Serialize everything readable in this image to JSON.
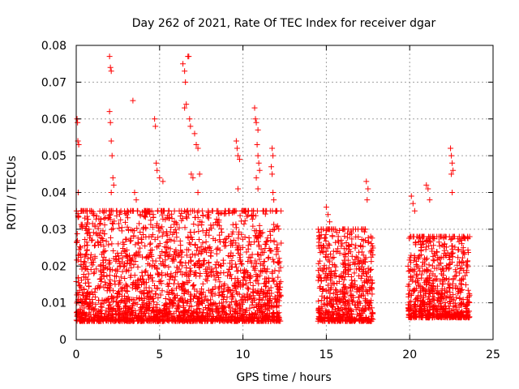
{
  "chart_data": {
    "type": "scatter",
    "title": "Day 262 of 2021, Rate Of TEC Index for receiver dgar",
    "xlabel": "GPS time / hours",
    "ylabel": "ROTI / TECUs",
    "xlim": [
      0,
      25
    ],
    "ylim": [
      0,
      0.08
    ],
    "x_ticks": [
      0,
      5,
      10,
      15,
      20,
      25
    ],
    "x_tick_labels": [
      "0",
      "5",
      "10",
      "15",
      "20",
      "25"
    ],
    "y_ticks": [
      0,
      0.01,
      0.02,
      0.03,
      0.04,
      0.05,
      0.06,
      0.07,
      0.08
    ],
    "y_tick_labels": [
      "0",
      "0.01",
      "0.02",
      "0.03",
      "0.04",
      "0.05",
      "0.06",
      "0.07",
      "0.08"
    ],
    "grid": true,
    "marker": "+",
    "marker_color": "#ff0000",
    "series": [
      {
        "points": [
          [
            0.05,
            0.06
          ],
          [
            0.08,
            0.059
          ],
          [
            0.1,
            0.054
          ],
          [
            0.15,
            0.053
          ],
          [
            0.12,
            0.04
          ],
          [
            2.0,
            0.077
          ],
          [
            2.05,
            0.074
          ],
          [
            2.1,
            0.073
          ],
          [
            2.0,
            0.062
          ],
          [
            2.05,
            0.059
          ],
          [
            2.1,
            0.054
          ],
          [
            2.15,
            0.05
          ],
          [
            2.2,
            0.044
          ],
          [
            2.25,
            0.042
          ],
          [
            2.1,
            0.04
          ],
          [
            3.4,
            0.065
          ],
          [
            3.5,
            0.04
          ],
          [
            3.6,
            0.038
          ],
          [
            4.7,
            0.06
          ],
          [
            4.75,
            0.058
          ],
          [
            4.8,
            0.048
          ],
          [
            4.85,
            0.046
          ],
          [
            5.0,
            0.044
          ],
          [
            5.2,
            0.043
          ],
          [
            6.4,
            0.075
          ],
          [
            6.5,
            0.073
          ],
          [
            6.55,
            0.07
          ],
          [
            6.7,
            0.077
          ],
          [
            6.75,
            0.077
          ],
          [
            6.6,
            0.064
          ],
          [
            6.5,
            0.063
          ],
          [
            6.8,
            0.06
          ],
          [
            6.85,
            0.058
          ],
          [
            7.1,
            0.056
          ],
          [
            7.2,
            0.053
          ],
          [
            7.3,
            0.052
          ],
          [
            6.9,
            0.045
          ],
          [
            7.0,
            0.044
          ],
          [
            7.4,
            0.045
          ],
          [
            7.3,
            0.04
          ],
          [
            9.6,
            0.054
          ],
          [
            9.65,
            0.052
          ],
          [
            9.7,
            0.05
          ],
          [
            9.8,
            0.049
          ],
          [
            9.7,
            0.041
          ],
          [
            10.7,
            0.063
          ],
          [
            10.75,
            0.06
          ],
          [
            10.8,
            0.059
          ],
          [
            10.9,
            0.057
          ],
          [
            10.85,
            0.053
          ],
          [
            10.9,
            0.05
          ],
          [
            10.95,
            0.048
          ],
          [
            11.0,
            0.046
          ],
          [
            10.8,
            0.044
          ],
          [
            10.9,
            0.041
          ],
          [
            11.75,
            0.052
          ],
          [
            11.8,
            0.05
          ],
          [
            11.7,
            0.047
          ],
          [
            11.75,
            0.045
          ],
          [
            11.8,
            0.04
          ],
          [
            11.85,
            0.038
          ],
          [
            15.0,
            0.036
          ],
          [
            15.1,
            0.034
          ],
          [
            15.2,
            0.032
          ],
          [
            17.4,
            0.043
          ],
          [
            17.5,
            0.041
          ],
          [
            17.45,
            0.038
          ],
          [
            20.1,
            0.039
          ],
          [
            20.2,
            0.037
          ],
          [
            20.3,
            0.035
          ],
          [
            21.0,
            0.042
          ],
          [
            21.1,
            0.041
          ],
          [
            21.2,
            0.038
          ],
          [
            22.45,
            0.052
          ],
          [
            22.5,
            0.05
          ],
          [
            22.55,
            0.048
          ],
          [
            22.6,
            0.046
          ],
          [
            22.5,
            0.045
          ],
          [
            22.55,
            0.04
          ]
        ],
        "clusters": [
          {
            "x_range": [
              0.0,
              12.3
            ],
            "y_range": [
              0.002,
              0.035
            ]
          },
          {
            "x_range": [
              14.5,
              17.8
            ],
            "y_range": [
              0.002,
              0.03
            ]
          },
          {
            "x_range": [
              19.9,
              23.6
            ],
            "y_range": [
              0.003,
              0.028
            ]
          }
        ]
      }
    ]
  }
}
